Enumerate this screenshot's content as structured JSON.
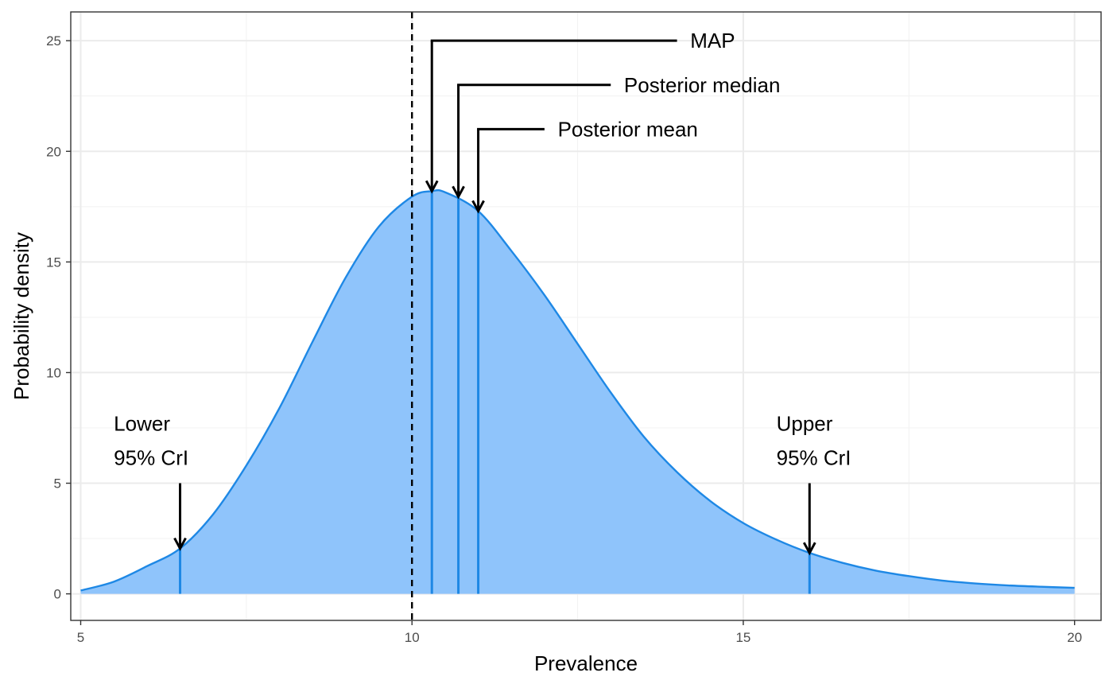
{
  "chart_data": {
    "type": "area",
    "title": "",
    "xlabel": "Prevalence",
    "ylabel": "Probability density",
    "xlim": [
      4.85,
      20.4
    ],
    "ylim": [
      -1.2,
      26.3
    ],
    "x_ticks": [
      5,
      10,
      15,
      20
    ],
    "y_ticks": [
      0,
      5,
      10,
      15,
      20,
      25
    ],
    "grid": true,
    "legend": "none",
    "colors": {
      "fill": "#8FC4FB",
      "line": "#1E88E5",
      "annotation": "#000000",
      "grid_major": "#EBEBEB",
      "grid_minor": "#F3F3F3",
      "panel_border": "#333333"
    },
    "density": {
      "x": [
        5,
        5.5,
        6,
        6.5,
        7,
        7.5,
        8,
        8.5,
        9,
        9.5,
        10,
        10.3,
        10.5,
        11,
        11.5,
        12,
        12.5,
        13,
        13.5,
        14,
        14.5,
        15,
        15.5,
        16,
        16.5,
        17,
        17.5,
        18,
        18.5,
        19,
        19.5,
        20
      ],
      "y": [
        0.15,
        0.55,
        1.25,
        2.05,
        3.6,
        5.8,
        8.4,
        11.4,
        14.3,
        16.6,
        17.95,
        18.2,
        18.15,
        17.3,
        15.5,
        13.5,
        11.3,
        9.1,
        7.1,
        5.5,
        4.2,
        3.2,
        2.45,
        1.85,
        1.4,
        1.05,
        0.8,
        0.6,
        0.47,
        0.38,
        0.32,
        0.27
      ]
    },
    "reference_line": {
      "x": 10,
      "style": "dashed"
    },
    "markers": [
      {
        "name": "Lower 95% CrI",
        "x": 6.5,
        "density": 2.05
      },
      {
        "name": "MAP",
        "x": 10.3,
        "density": 18.2
      },
      {
        "name": "Posterior median",
        "x": 10.7,
        "density": 17.95
      },
      {
        "name": "Posterior mean",
        "x": 11.0,
        "density": 17.3
      },
      {
        "name": "Upper 95% CrI",
        "x": 16.0,
        "density": 1.85
      }
    ],
    "annotations": [
      {
        "key": "map",
        "text": "MAP",
        "marker_x": 10.3,
        "arrow_from_y": 25,
        "arrow_to_y": 18.2,
        "leader_to_x": 14.0,
        "label_x": 14.2
      },
      {
        "key": "median",
        "text": "Posterior median",
        "marker_x": 10.7,
        "arrow_from_y": 23,
        "arrow_to_y": 17.95,
        "leader_to_x": 13.0,
        "label_x": 13.2
      },
      {
        "key": "mean",
        "text": "Posterior mean",
        "marker_x": 11.0,
        "arrow_from_y": 21,
        "arrow_to_y": 17.3,
        "leader_to_x": 12.0,
        "label_x": 12.2
      },
      {
        "key": "lower",
        "lines": [
          "Lower",
          "95% CrI"
        ],
        "marker_x": 6.5,
        "arrow_from_y": 5,
        "arrow_to_y": 2.05,
        "label_x": 5.5,
        "label_ys": [
          7.7,
          6.15
        ]
      },
      {
        "key": "upper",
        "lines": [
          "Upper",
          "95% CrI"
        ],
        "marker_x": 16.0,
        "arrow_from_y": 5,
        "arrow_to_y": 1.85,
        "label_x": 15.5,
        "label_ys": [
          7.7,
          6.15
        ]
      }
    ]
  }
}
